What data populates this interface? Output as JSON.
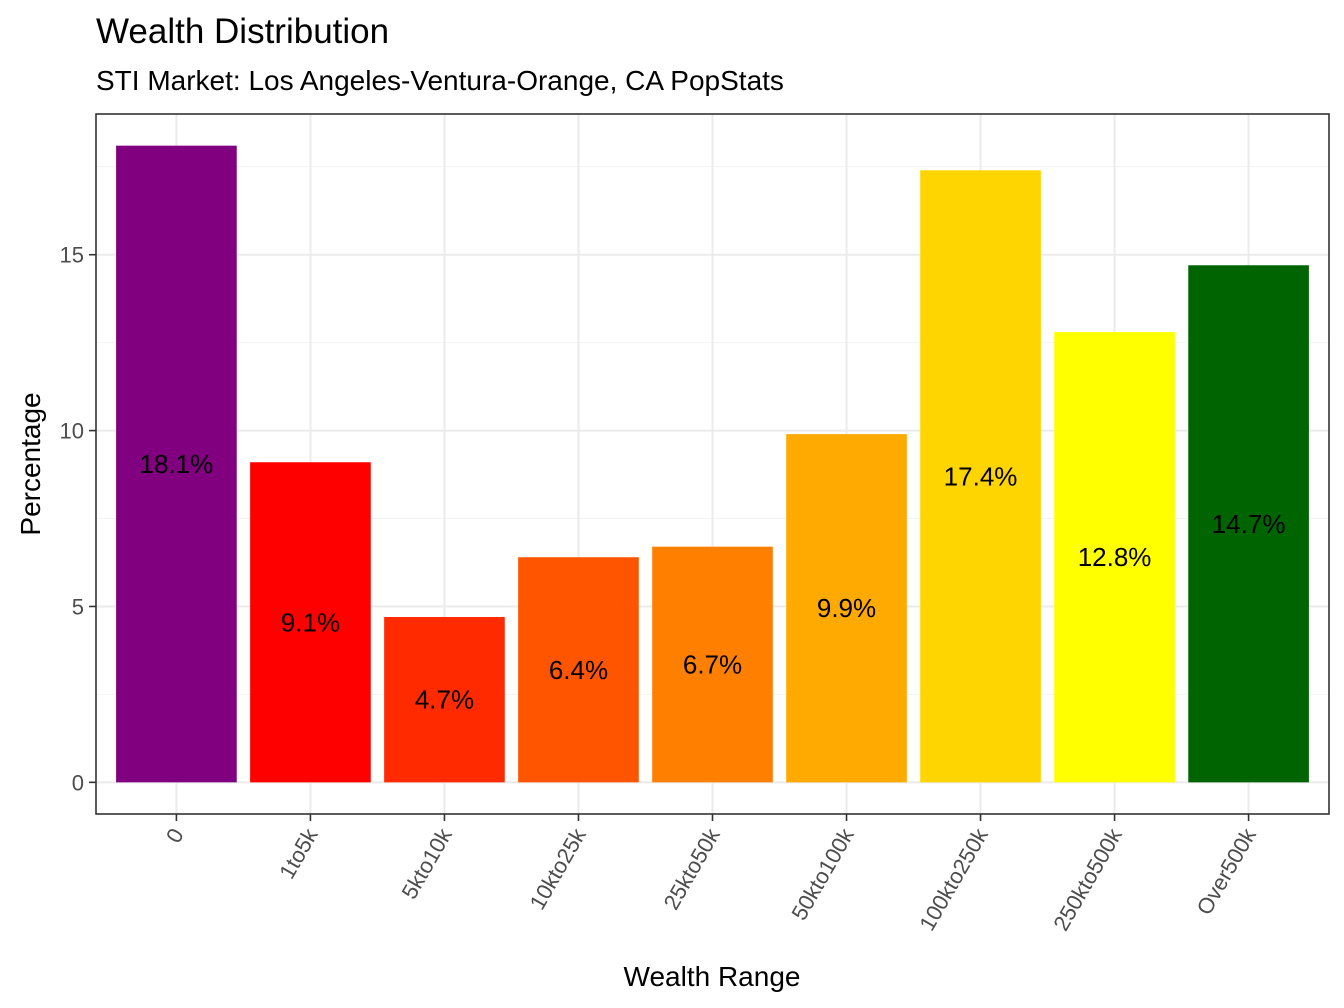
{
  "chart_data": {
    "type": "bar",
    "title": "Wealth Distribution",
    "subtitle": "STI Market: Los Angeles-Ventura-Orange, CA PopStats",
    "xlabel": "Wealth Range",
    "ylabel": "Percentage",
    "categories": [
      "0",
      "1to5k",
      "5kto10k",
      "10kto25k",
      "25kto50k",
      "50kto100k",
      "100kto250k",
      "250kto500k",
      "Over500k"
    ],
    "values": [
      18.1,
      9.1,
      4.7,
      6.4,
      6.7,
      9.9,
      17.4,
      12.8,
      14.7
    ],
    "data_labels": [
      "18.1%",
      "9.1%",
      "4.7%",
      "6.4%",
      "6.7%",
      "9.9%",
      "17.4%",
      "12.8%",
      "14.7%"
    ],
    "colors": [
      "#800080",
      "#ff0000",
      "#ff2a00",
      "#ff5500",
      "#ff8000",
      "#ffaa00",
      "#ffd500",
      "#ffff00",
      "#006400"
    ],
    "ylim": [
      -0.9,
      19.0
    ],
    "yticks": [
      0,
      5,
      10,
      15
    ],
    "ytick_labels": [
      "0",
      "5",
      "10",
      "15"
    ],
    "grid": true,
    "legend": "none"
  }
}
